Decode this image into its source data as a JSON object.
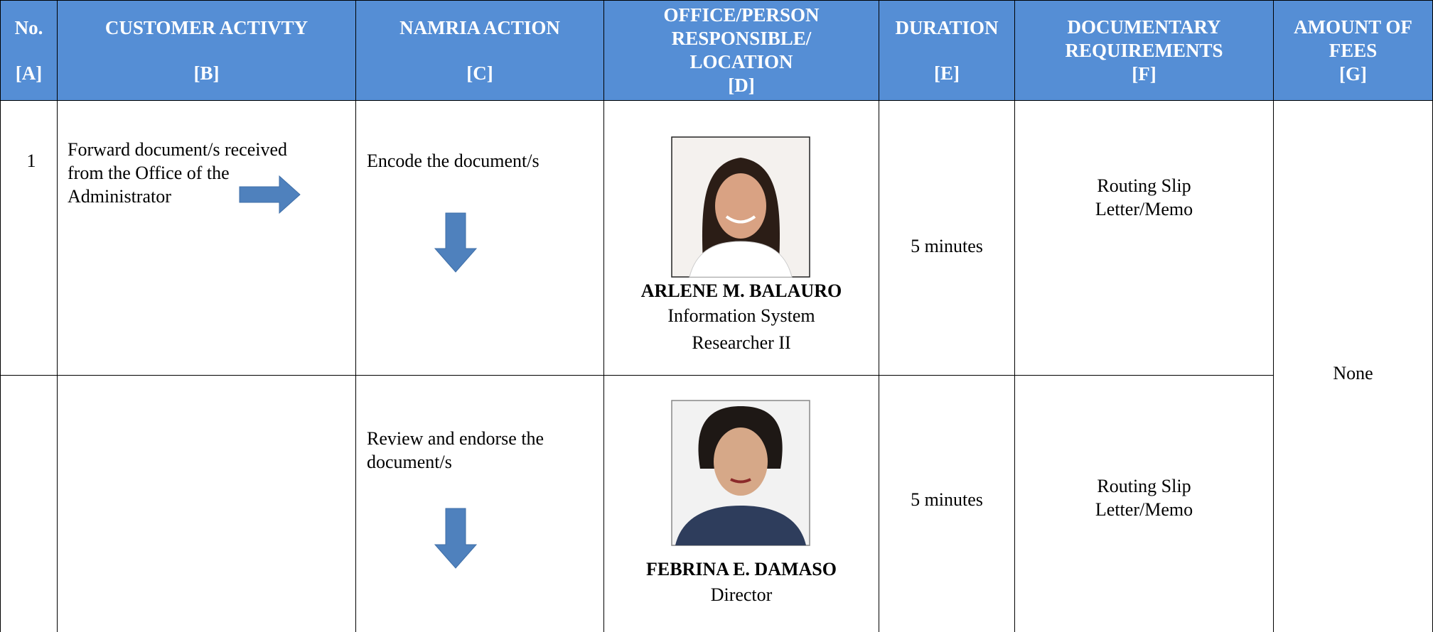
{
  "header": {
    "columns": [
      {
        "title": "No.",
        "code": "[A]"
      },
      {
        "title": "CUSTOMER ACTIVTY",
        "code": "[B]"
      },
      {
        "title": "NAMRIA ACTION",
        "code": "[C]"
      },
      {
        "title": "OFFICE/PERSON RESPONSIBLE/ LOCATION",
        "code": "[D]"
      },
      {
        "title": "DURATION",
        "code": "[E]"
      },
      {
        "title": "DOCUMENTARY REQUIREMENTS",
        "code": "[F]"
      },
      {
        "title": "AMOUNT OF FEES",
        "code": "[G]"
      }
    ]
  },
  "rows": [
    {
      "no": "1",
      "customer_activity": "Forward document/s received from the Office of the Administrator",
      "action": "Encode the document/s",
      "person": {
        "name": "ARLENE M. BALAURO",
        "position": "Information System Researcher II"
      },
      "duration": "5 minutes",
      "requirements": [
        "Routing Slip",
        "Letter/Memo"
      ]
    },
    {
      "action": "Review and endorse the document/s",
      "person": {
        "name": "FEBRINA E. DAMASO",
        "position": "Director"
      },
      "duration": "5 minutes",
      "requirements": [
        "Routing Slip",
        "Letter/Memo"
      ]
    }
  ],
  "fees": "None"
}
